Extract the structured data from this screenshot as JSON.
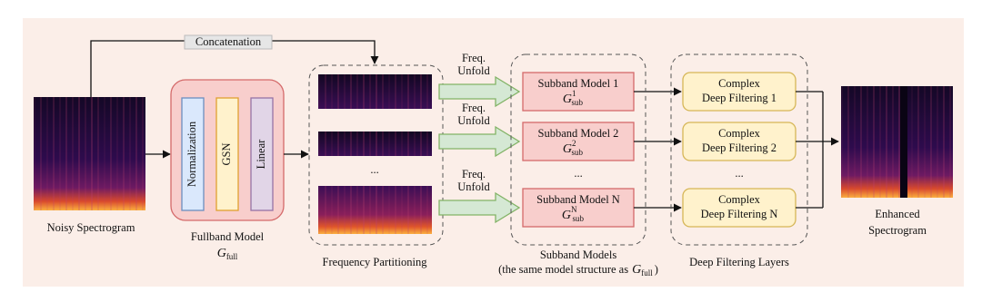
{
  "concatenation": "Concatenation",
  "input": {
    "label": "Noisy Spectrogram"
  },
  "fullband": {
    "layers": [
      "Normalization",
      "GSN",
      "Linear"
    ],
    "label": "Fullband Model",
    "symbol": {
      "base": "G",
      "sub": "full"
    }
  },
  "partitioning": {
    "ellipsis": "...",
    "label": "Frequency Partitioning"
  },
  "unfold": [
    [
      "Freq.",
      "Unfold"
    ],
    [
      "Freq.",
      "Unfold"
    ],
    [
      "Freq.",
      "Unfold"
    ]
  ],
  "subband": {
    "models": [
      {
        "label": "Subband Model 1",
        "symbol": {
          "base": "G",
          "sup": "1",
          "sub": "sub"
        }
      },
      {
        "label": "Subband Model 2",
        "symbol": {
          "base": "G",
          "sup": "2",
          "sub": "sub"
        }
      },
      {
        "label": "Subband Model N",
        "symbol": {
          "base": "G",
          "sup": "N",
          "sub": "sub"
        }
      }
    ],
    "ellipsis": "...",
    "label": "Subband Models",
    "note": {
      "text": "(the same model structure as",
      "symbol": {
        "base": "G",
        "sub": "full"
      },
      "close": ")"
    }
  },
  "filtering": {
    "blocks": [
      [
        "Complex",
        "Deep Filtering 1"
      ],
      [
        "Complex",
        "Deep Filtering 2"
      ],
      [
        "Complex",
        "Deep Filtering N"
      ]
    ],
    "ellipsis": "...",
    "label": "Deep Filtering Layers"
  },
  "output": {
    "label": [
      "Enhanced",
      "Spectrogram"
    ]
  }
}
